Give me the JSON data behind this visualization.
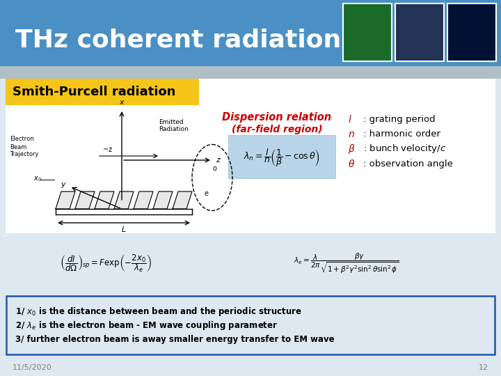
{
  "title": "THz coherent radiation",
  "subtitle": "Smith-Purcell radiation",
  "title_bg": "#4a90c4",
  "subtitle_bg": "#f5c518",
  "slide_bg": "#dde8f0",
  "footer_date": "11/5/2020",
  "footer_page": "12",
  "dispersion_title": "Dispersion relation",
  "dispersion_sub": "(far-field region)",
  "dispersion_color": "#cc0000",
  "formula_box_bg": "#b8d4e8",
  "formula1": "$\\lambda_n = \\dfrac{l}{n}\\left(\\dfrac{1}{\\beta} - \\cos\\theta\\right)$",
  "legend_items": [
    [
      "$l$",
      ": grating period"
    ],
    [
      "$n$",
      ": harmonic order"
    ],
    [
      "$\\beta$",
      ": bunch velocity/$c$"
    ],
    [
      "$\\theta$",
      ": observation angle"
    ]
  ],
  "eq1": "$\\left(\\dfrac{dI}{d\\Omega}\\right)_{sp} = F\\exp\\!\\left(-\\dfrac{2x_0}{\\lambda_e}\\right)$",
  "eq2": "$\\lambda_e = \\dfrac{\\lambda}{2\\pi}\\dfrac{\\beta\\gamma}{\\sqrt{1+\\beta^2\\gamma^2\\sin^2\\theta\\sin^2\\phi}}$",
  "box_text_line1": "1/ $x_0$ is the distance between beam and the periodic structure",
  "box_text_line2": "2/ $\\lambda_e$ is the electron beam - EM wave coupling parameter",
  "box_text_line3": "3/ further electron beam is away smaller energy transfer to EM wave",
  "box_border": "#2255aa",
  "bottom_box_bg": "#dde8f0",
  "img_colors": [
    "#1a6b2a",
    "#223355",
    "#001133"
  ]
}
